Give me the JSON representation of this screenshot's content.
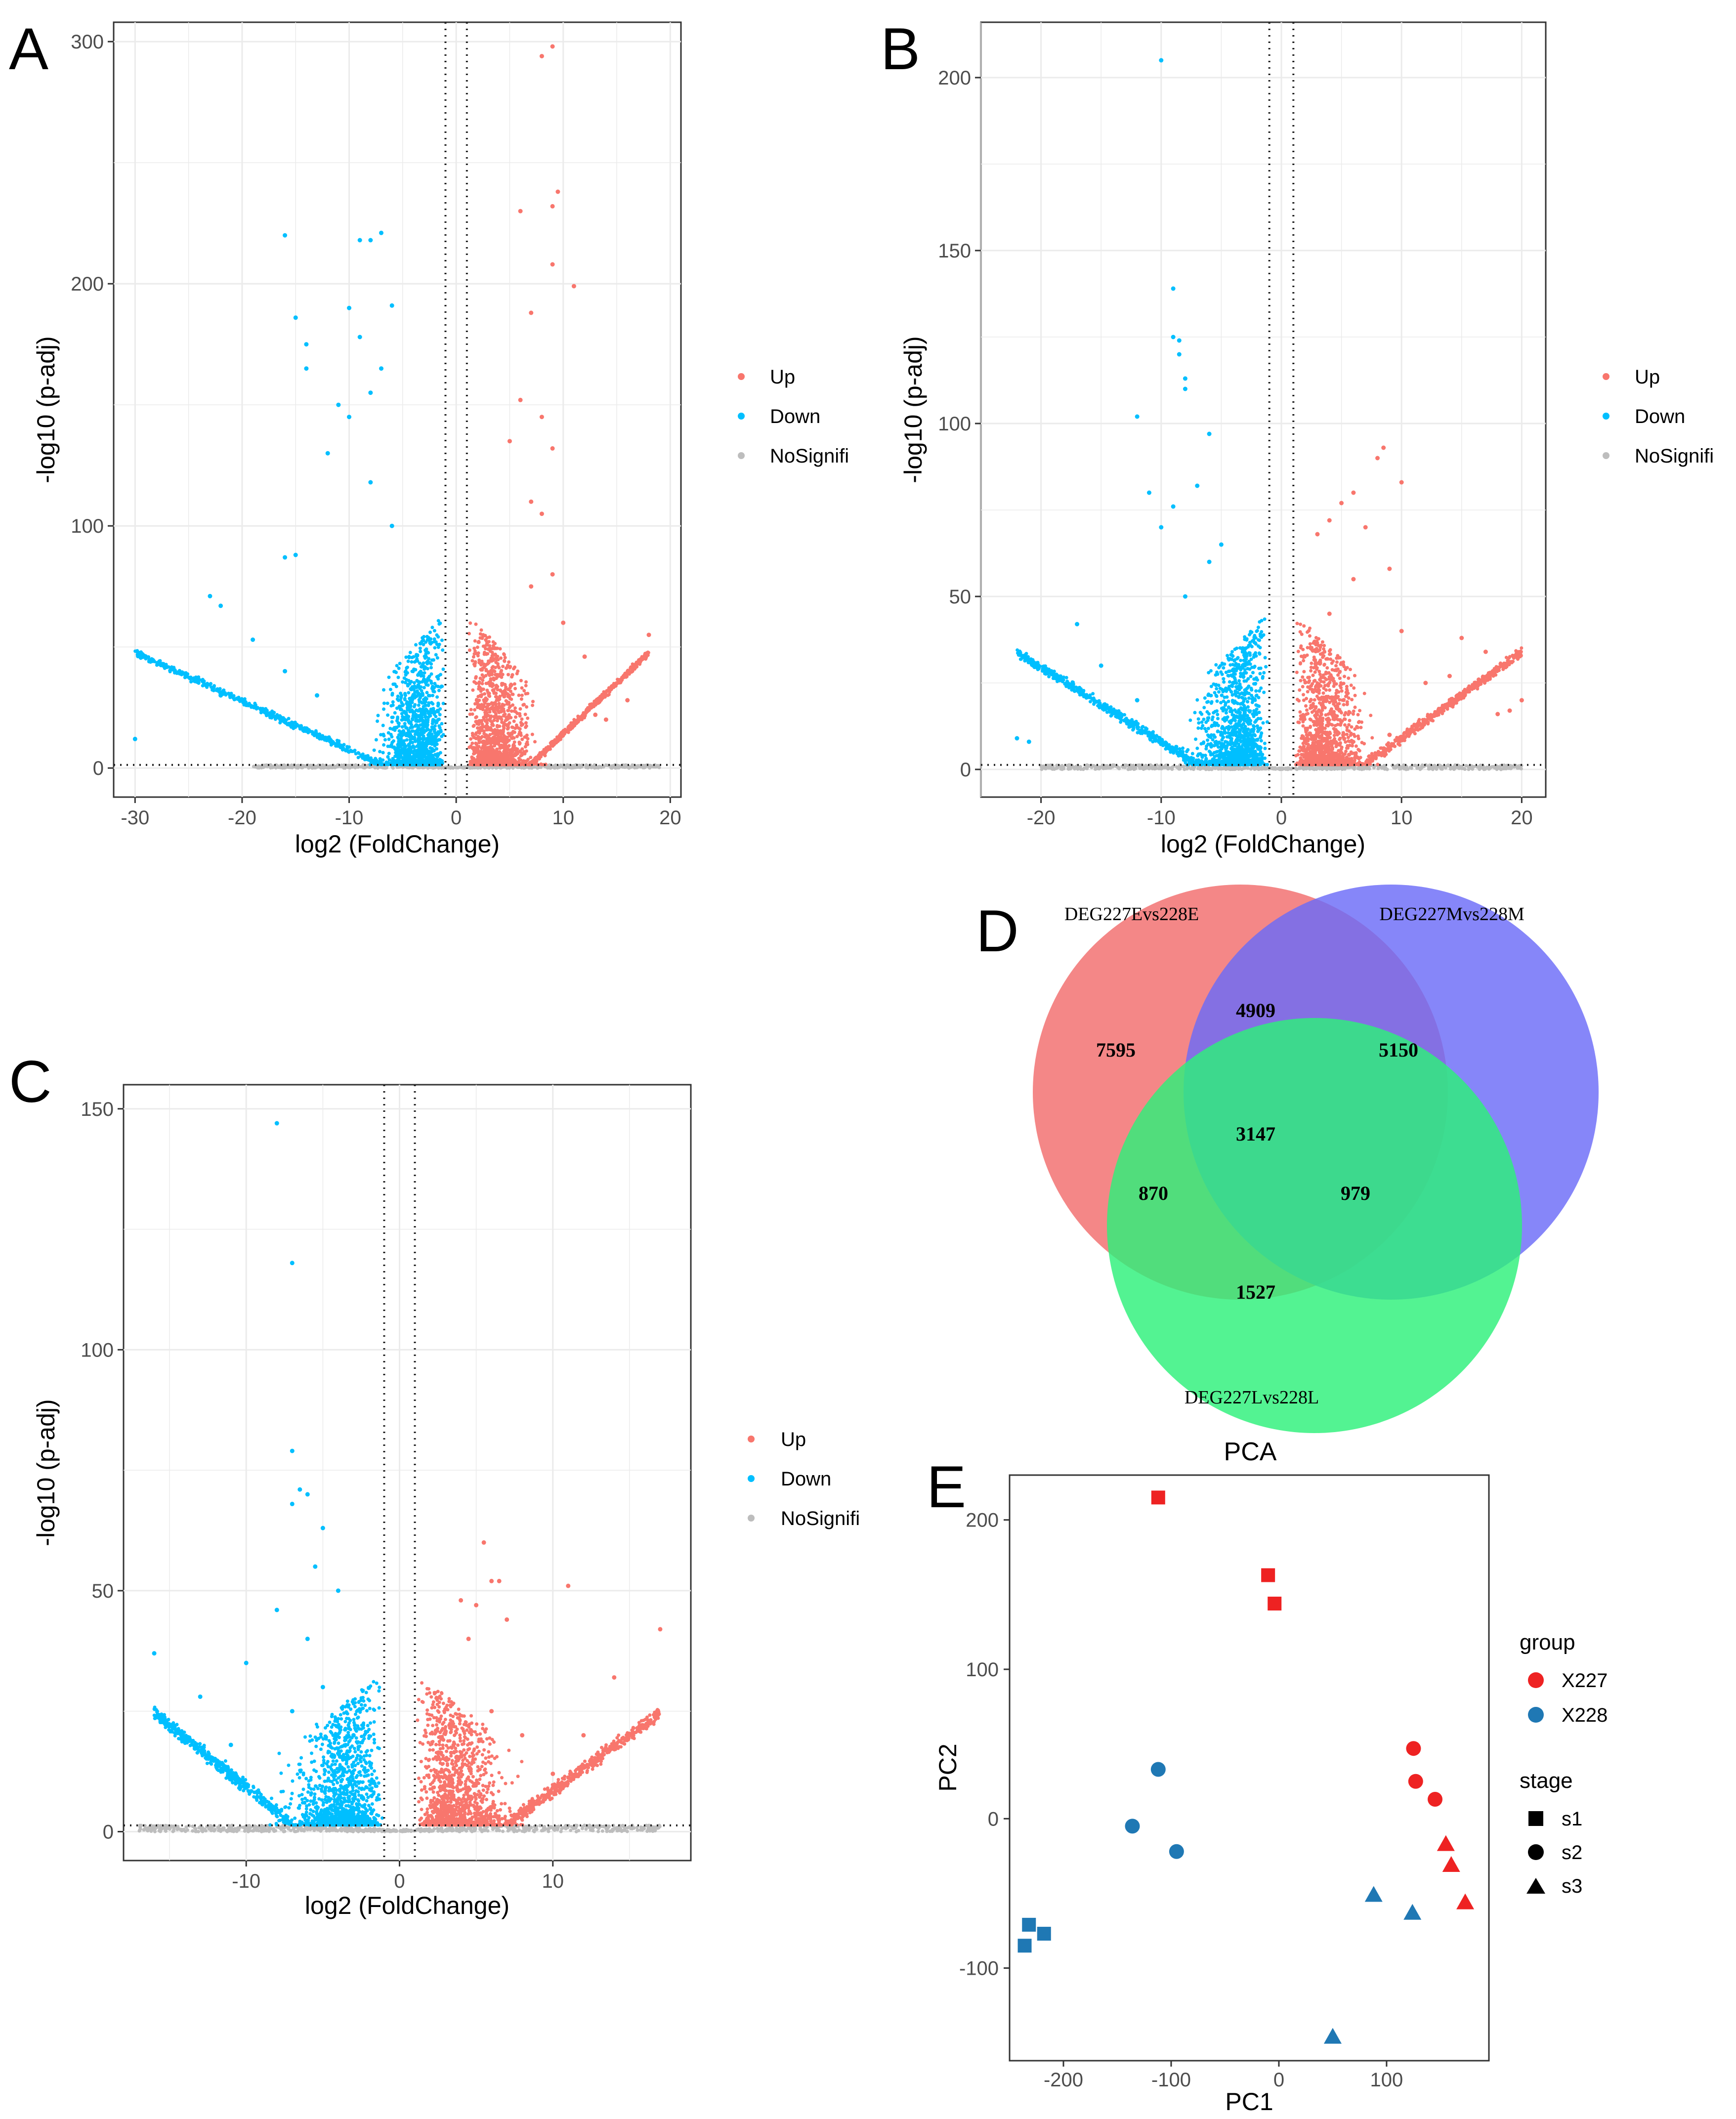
{
  "panels": {
    "A": "A",
    "B": "B",
    "C": "C",
    "D": "D",
    "E": "E"
  },
  "chart_data": [
    {
      "id": "A",
      "type": "scatter",
      "subtype": "volcano",
      "xlabel": "log2 (FoldChange)",
      "ylabel": "-log10 (p-adj)",
      "xlim": [
        -32,
        21
      ],
      "ylim": [
        -12,
        308
      ],
      "xticks": [
        -30,
        -20,
        -10,
        0,
        10,
        20
      ],
      "yticks": [
        0,
        100,
        200,
        300
      ],
      "thresholds": {
        "x": [
          -1,
          1
        ],
        "y": 1.3
      },
      "legend": [
        "Up",
        "Down",
        "NoSignifi"
      ],
      "series": [
        {
          "name": "Up",
          "color": "#f8766d",
          "sample_points": [
            [
              9,
              298
            ],
            [
              8,
              294
            ],
            [
              9.5,
              238
            ],
            [
              9,
              232
            ],
            [
              6,
              230
            ],
            [
              11,
              199
            ],
            [
              9,
              208
            ],
            [
              7,
              188
            ],
            [
              6,
              152
            ],
            [
              8,
              145
            ],
            [
              5,
              135
            ],
            [
              9,
              132
            ],
            [
              7,
              110
            ],
            [
              8,
              105
            ],
            [
              9,
              80
            ],
            [
              7,
              75
            ],
            [
              10,
              60
            ],
            [
              12,
              46
            ],
            [
              18,
              55
            ],
            [
              15,
              35
            ],
            [
              16,
              28
            ],
            [
              13,
              22
            ],
            [
              10,
              15
            ],
            [
              14,
              20
            ]
          ]
        },
        {
          "name": "Down",
          "color": "#00bfff",
          "sample_points": [
            [
              -16,
              220
            ],
            [
              -9,
              218
            ],
            [
              -7,
              221
            ],
            [
              -8,
              218
            ],
            [
              -15,
              186
            ],
            [
              -14,
              175
            ],
            [
              -10,
              190
            ],
            [
              -6,
              191
            ],
            [
              -9,
              178
            ],
            [
              -7,
              165
            ],
            [
              -14,
              165
            ],
            [
              -11,
              150
            ],
            [
              -8,
              155
            ],
            [
              -10,
              145
            ],
            [
              -12,
              130
            ],
            [
              -8,
              118
            ],
            [
              -15,
              88
            ],
            [
              -16,
              87
            ],
            [
              -23,
              71
            ],
            [
              -22,
              67
            ],
            [
              -19,
              53
            ],
            [
              -30,
              12
            ],
            [
              -22,
              30
            ],
            [
              -16,
              40
            ],
            [
              -13,
              30
            ],
            [
              -6,
              100
            ]
          ]
        },
        {
          "name": "NoSignifi",
          "color": "#bdbdbd",
          "sample_points": [
            [
              -2,
              1
            ],
            [
              -1,
              0.5
            ],
            [
              0,
              0.3
            ],
            [
              1,
              0.6
            ],
            [
              2,
              1
            ],
            [
              -4,
              1
            ],
            [
              4,
              1
            ]
          ]
        }
      ]
    },
    {
      "id": "B",
      "type": "scatter",
      "subtype": "volcano",
      "xlabel": "log2 (FoldChange)",
      "ylabel": "-log10 (p-adj)",
      "xlim": [
        -25,
        22
      ],
      "ylim": [
        -8,
        216
      ],
      "xticks": [
        -20,
        -10,
        0,
        10,
        20
      ],
      "yticks": [
        0,
        50,
        100,
        150,
        200
      ],
      "thresholds": {
        "x": [
          -1,
          1
        ],
        "y": 1.3
      },
      "legend": [
        "Up",
        "Down",
        "NoSignifi"
      ],
      "series": [
        {
          "name": "Up",
          "color": "#f8766d",
          "sample_points": [
            [
              8.5,
              93
            ],
            [
              8,
              90
            ],
            [
              10,
              83
            ],
            [
              6,
              80
            ],
            [
              5,
              77
            ],
            [
              4,
              72
            ],
            [
              3,
              68
            ],
            [
              7,
              70
            ],
            [
              9,
              58
            ],
            [
              6,
              55
            ],
            [
              4,
              45
            ],
            [
              10,
              40
            ],
            [
              15,
              38
            ],
            [
              17,
              34
            ],
            [
              14,
              27
            ],
            [
              20,
              20
            ],
            [
              19,
              17
            ],
            [
              18,
              16
            ],
            [
              12,
              25
            ],
            [
              9,
              10
            ]
          ]
        },
        {
          "name": "Down",
          "color": "#00bfff",
          "sample_points": [
            [
              -10,
              205
            ],
            [
              -9,
              139
            ],
            [
              -9,
              125
            ],
            [
              -8.5,
              124
            ],
            [
              -8.5,
              120
            ],
            [
              -8,
              113
            ],
            [
              -8,
              110
            ],
            [
              -12,
              102
            ],
            [
              -6,
              97
            ],
            [
              -7,
              82
            ],
            [
              -11,
              80
            ],
            [
              -9,
              76
            ],
            [
              -10,
              70
            ],
            [
              -5,
              65
            ],
            [
              -6,
              60
            ],
            [
              -8,
              50
            ],
            [
              -17,
              42
            ],
            [
              -15,
              30
            ],
            [
              -22,
              9
            ],
            [
              -21,
              8
            ],
            [
              -12,
              20
            ],
            [
              -4,
              25
            ]
          ]
        },
        {
          "name": "NoSignifi",
          "color": "#bdbdbd",
          "sample_points": [
            [
              -2,
              1
            ],
            [
              -1,
              0.5
            ],
            [
              0,
              0.3
            ],
            [
              1,
              0.6
            ],
            [
              2,
              1
            ],
            [
              -4,
              1
            ],
            [
              4,
              1
            ]
          ]
        }
      ]
    },
    {
      "id": "C",
      "type": "scatter",
      "subtype": "volcano",
      "xlabel": "log2 (FoldChange)",
      "ylabel": "-log10 (p-adj)",
      "xlim": [
        -18,
        19
      ],
      "ylim": [
        -6,
        155
      ],
      "xticks": [
        -10,
        0,
        10
      ],
      "yticks": [
        0,
        50,
        100,
        150
      ],
      "thresholds": {
        "x": [
          -1,
          1
        ],
        "y": 1.3
      },
      "legend": [
        "Up",
        "Down",
        "NoSignifi"
      ],
      "series": [
        {
          "name": "Up",
          "color": "#f8766d",
          "sample_points": [
            [
              5.5,
              60
            ],
            [
              6,
              52
            ],
            [
              6.5,
              52
            ],
            [
              4,
              48
            ],
            [
              11,
              51
            ],
            [
              5,
              47
            ],
            [
              7,
              44
            ],
            [
              4.5,
              40
            ],
            [
              17,
              42
            ],
            [
              14,
              32
            ],
            [
              12,
              20
            ],
            [
              10,
              12
            ],
            [
              8,
              20
            ],
            [
              6,
              25
            ],
            [
              3,
              15
            ],
            [
              5,
              10
            ]
          ]
        },
        {
          "name": "Down",
          "color": "#00bfff",
          "sample_points": [
            [
              -8,
              147
            ],
            [
              -7,
              118
            ],
            [
              -7,
              79
            ],
            [
              -6.5,
              71
            ],
            [
              -6,
              70
            ],
            [
              -5,
              63
            ],
            [
              -7,
              68
            ],
            [
              -5.5,
              55
            ],
            [
              -4,
              50
            ],
            [
              -8,
              46
            ],
            [
              -6,
              40
            ],
            [
              -10,
              35
            ],
            [
              -16,
              37
            ],
            [
              -13,
              28
            ],
            [
              -11,
              18
            ],
            [
              -7,
              25
            ],
            [
              -5,
              30
            ],
            [
              -3,
              20
            ]
          ]
        },
        {
          "name": "NoSignifi",
          "color": "#bdbdbd",
          "sample_points": [
            [
              -2,
              1
            ],
            [
              -1,
              0.5
            ],
            [
              0,
              0.3
            ],
            [
              1,
              0.6
            ],
            [
              2,
              1
            ],
            [
              -4,
              1
            ],
            [
              4,
              1
            ]
          ]
        }
      ]
    },
    {
      "id": "D",
      "type": "venn",
      "sets": [
        {
          "name": "DEG227Evs228E",
          "color": "#f26d6d"
        },
        {
          "name": "DEG227Mvs228M",
          "color": "#6b6bf8"
        },
        {
          "name": "DEG227Lvs228L",
          "color": "#2df07a"
        }
      ],
      "regions": [
        {
          "sets": [
            "DEG227Evs228E"
          ],
          "count": 7595
        },
        {
          "sets": [
            "DEG227Mvs228M"
          ],
          "count": 5150
        },
        {
          "sets": [
            "DEG227Lvs228L"
          ],
          "count": 1527
        },
        {
          "sets": [
            "DEG227Evs228E",
            "DEG227Mvs228M"
          ],
          "count": 4909
        },
        {
          "sets": [
            "DEG227Evs228E",
            "DEG227Lvs228L"
          ],
          "count": 870
        },
        {
          "sets": [
            "DEG227Mvs228M",
            "DEG227Lvs228L"
          ],
          "count": 979
        },
        {
          "sets": [
            "DEG227Evs228E",
            "DEG227Mvs228M",
            "DEG227Lvs228L"
          ],
          "count": 3147
        }
      ]
    },
    {
      "id": "E",
      "type": "scatter",
      "title": "PCA",
      "xlabel": "PC1",
      "ylabel": "PC2",
      "xlim": [
        -250,
        195
      ],
      "ylim": [
        -162,
        230
      ],
      "xticks": [
        -200,
        -100,
        0,
        100
      ],
      "yticks": [
        -100,
        0,
        100,
        200
      ],
      "legend": {
        "group_title": "group",
        "groups": [
          {
            "name": "X227",
            "color": "#ee2222"
          },
          {
            "name": "X228",
            "color": "#1f78b4"
          }
        ],
        "stage_title": "stage",
        "stages": [
          {
            "name": "s1",
            "shape": "square"
          },
          {
            "name": "s2",
            "shape": "circle"
          },
          {
            "name": "s3",
            "shape": "triangle"
          }
        ]
      },
      "points": [
        {
          "group": "X227",
          "stage": "s1",
          "x": -112,
          "y": 215
        },
        {
          "group": "X227",
          "stage": "s1",
          "x": -10,
          "y": 163
        },
        {
          "group": "X227",
          "stage": "s1",
          "x": -4,
          "y": 144
        },
        {
          "group": "X227",
          "stage": "s2",
          "x": 125,
          "y": 47
        },
        {
          "group": "X227",
          "stage": "s2",
          "x": 127,
          "y": 25
        },
        {
          "group": "X227",
          "stage": "s2",
          "x": 145,
          "y": 13
        },
        {
          "group": "X227",
          "stage": "s3",
          "x": 155,
          "y": -17
        },
        {
          "group": "X227",
          "stage": "s3",
          "x": 160,
          "y": -31
        },
        {
          "group": "X227",
          "stage": "s3",
          "x": 173,
          "y": -56
        },
        {
          "group": "X228",
          "stage": "s1",
          "x": -232,
          "y": -71
        },
        {
          "group": "X228",
          "stage": "s1",
          "x": -218,
          "y": -77
        },
        {
          "group": "X228",
          "stage": "s1",
          "x": -236,
          "y": -85
        },
        {
          "group": "X228",
          "stage": "s2",
          "x": -112,
          "y": 33
        },
        {
          "group": "X228",
          "stage": "s2",
          "x": -136,
          "y": -5
        },
        {
          "group": "X228",
          "stage": "s2",
          "x": -95,
          "y": -22
        },
        {
          "group": "X228",
          "stage": "s3",
          "x": 88,
          "y": -51
        },
        {
          "group": "X228",
          "stage": "s3",
          "x": 124,
          "y": -63
        },
        {
          "group": "X228",
          "stage": "s3",
          "x": 50,
          "y": -146
        }
      ]
    }
  ]
}
